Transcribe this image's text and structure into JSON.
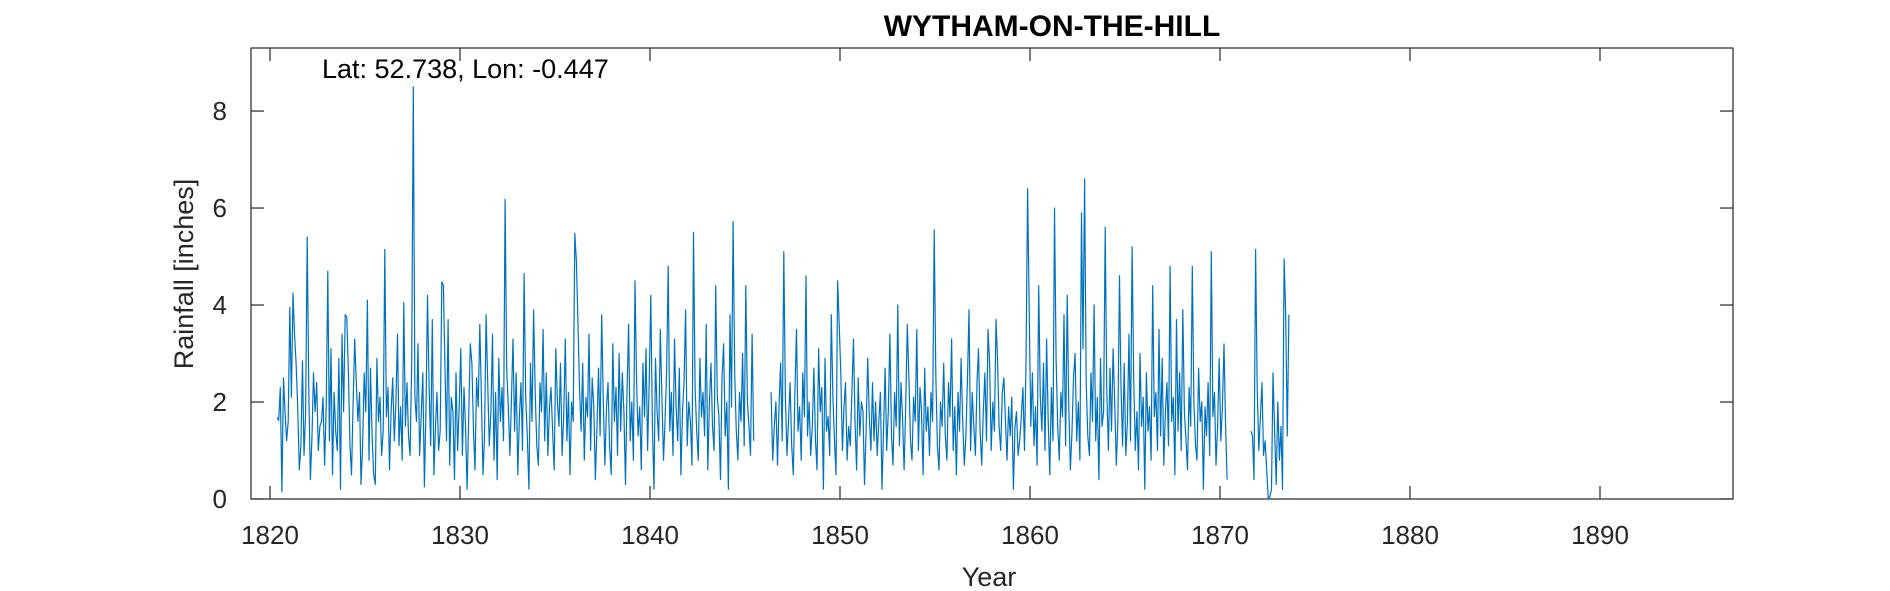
{
  "chart_data": {
    "type": "line",
    "title": "WYTHAM-ON-THE-HILL",
    "xlabel": "Year",
    "ylabel": "Rainfall [inches]",
    "annotation": "Lat: 52.738, Lon: -0.447",
    "xlim": [
      1819,
      1897
    ],
    "ylim": [
      0,
      9.3
    ],
    "x_ticks": [
      1820,
      1830,
      1840,
      1850,
      1860,
      1870,
      1880,
      1890
    ],
    "y_ticks": [
      0,
      2,
      4,
      6,
      8
    ],
    "grid": false,
    "line_color": "#0072BD",
    "series": [
      {
        "x_start": 1820.375,
        "x_step": 0.0833333,
        "values": [
          1.68,
          1.62,
          2.3,
          0.15,
          2.5,
          1.8,
          1.2,
          1.6,
          3.95,
          2.1,
          4.25,
          3.4,
          2.8,
          1.9,
          0.6,
          1.1,
          2.85,
          0.9,
          1.75,
          5.4,
          2.2,
          0.4,
          1.3,
          2.6,
          1.8,
          2.4,
          1.0,
          1.5,
          1.6,
          2.1,
          0.7,
          1.9,
          4.7,
          1.2,
          3.1,
          0.5,
          2.2,
          1.4,
          1.0,
          2.9,
          0.2,
          3.4,
          1.8,
          3.8,
          3.75,
          2.6,
          1.1,
          0.5,
          1.95,
          3.3,
          2.4,
          1.6,
          2.2,
          0.3,
          1.1,
          2.6,
          1.8,
          4.1,
          0.8,
          2.7,
          1.3,
          0.5,
          0.3,
          2.9,
          1.6,
          2.1,
          0.9,
          1.4,
          5.15,
          1.7,
          2.3,
          0.6,
          1.8,
          2.5,
          1.2,
          2.0,
          3.4,
          1.1,
          1.9,
          0.8,
          4.05,
          1.5,
          2.4,
          1.3,
          0.9,
          2.8,
          8.5,
          2.1,
          1.6,
          3.2,
          0.9,
          1.7,
          2.6,
          0.25,
          1.9,
          4.2,
          2.3,
          1.1,
          3.7,
          0.5,
          1.5,
          2.2,
          1.0,
          1.4,
          4.48,
          4.4,
          2.7,
          1.2,
          3.7,
          0.7,
          2.1,
          1.8,
          0.4,
          2.6,
          1.0,
          1.9,
          3.1,
          0.9,
          2.3,
          1.5,
          0.2,
          1.7,
          3.2,
          2.8,
          1.4,
          0.6,
          2.5,
          1.9,
          3.6,
          2.1,
          0.5,
          1.3,
          3.8,
          2.4,
          1.1,
          1.8,
          3.4,
          0.8,
          2.2,
          0.4,
          2.9,
          1.6,
          2.3,
          1.2,
          6.18,
          2.7,
          1.9,
          0.9,
          2.1,
          3.3,
          1.4,
          2.6,
          0.5,
          1.7,
          2.4,
          1.0,
          4.65,
          2.1,
          1.3,
          0.2,
          2.8,
          1.6,
          3.9,
          2.2,
          1.1,
          0.7,
          2.4,
          1.8,
          3.5,
          1.2,
          2.6,
          0.9,
          1.9,
          2.3,
          1.4,
          0.6,
          3.1,
          2.0,
          1.5,
          2.8,
          0.9,
          1.7,
          3.3,
          1.2,
          2.2,
          0.5,
          2.0,
          1.6,
          5.48,
          4.9,
          3.6,
          2.3,
          1.4,
          2.8,
          0.8,
          2.1,
          1.7,
          3.4,
          1.0,
          2.5,
          1.9,
          0.4,
          1.5,
          2.7,
          1.3,
          3.8,
          2.0,
          0.7,
          1.9,
          2.4,
          1.1,
          0.5,
          3.2,
          1.6,
          2.3,
          0.9,
          3.0,
          1.4,
          2.6,
          1.8,
          0.3,
          2.2,
          3.6,
          1.2,
          2.0,
          0.8,
          4.5,
          2.5,
          1.3,
          1.9,
          0.6,
          2.8,
          1.7,
          3.1,
          1.0,
          2.4,
          4.2,
          1.5,
          0.2,
          2.9,
          1.8,
          1.2,
          3.5,
          2.1,
          0.8,
          1.6,
          2.6,
          4.8,
          1.4,
          2.2,
          0.9,
          3.3,
          1.9,
          1.2,
          2.7,
          0.5,
          1.8,
          2.4,
          3.9,
          1.1,
          2.0,
          1.6,
          0.7,
          5.5,
          2.3,
          1.4,
          0.8,
          2.9,
          1.7,
          2.2,
          1.3,
          3.6,
          0.6,
          2.0,
          2.8,
          1.5,
          1.0,
          4.4,
          2.1,
          1.7,
          0.4,
          2.5,
          3.2,
          1.3,
          2.0,
          0.2,
          3.8,
          1.9,
          5.72,
          2.6,
          1.4,
          0.8,
          2.2,
          1.6,
          3.0,
          1.1,
          4.4,
          2.0,
          1.5,
          0.9,
          3.4,
          1.2,
          null,
          null,
          null,
          null,
          null,
          null,
          null,
          null,
          null,
          null,
          2.2,
          0.8,
          1.5,
          2.0,
          0.7,
          1.9,
          2.8,
          1.2,
          5.1,
          2.1,
          0.9,
          1.6,
          2.4,
          1.1,
          0.5,
          2.2,
          3.5,
          1.4,
          1.9,
          0.8,
          2.6,
          1.7,
          4.6,
          1.3,
          2.0,
          0.9,
          1.5,
          2.7,
          1.2,
          0.6,
          3.1,
          1.8,
          2.3,
          0.2,
          2.9,
          1.4,
          1.7,
          0.9,
          3.8,
          2.1,
          1.2,
          0.5,
          4.5,
          3.6,
          2.6,
          1.0,
          1.9,
          2.4,
          0.8,
          1.5,
          1.1,
          2.2,
          3.3,
          1.6,
          0.6,
          2.5,
          1.3,
          2.0,
          1.8,
          0.3,
          1.4,
          2.9,
          1.7,
          1.0,
          2.4,
          1.2,
          2.0,
          0.9,
          1.6,
          2.2,
          0.2,
          1.4,
          2.7,
          1.0,
          1.8,
          3.4,
          1.3,
          0.7,
          2.2,
          1.5,
          4.0,
          1.1,
          2.4,
          1.7,
          0.6,
          1.9,
          3.6,
          2.5,
          1.2,
          0.8,
          2.1,
          1.6,
          3.5,
          1.0,
          2.3,
          1.8,
          0.5,
          2.7,
          1.4,
          1.9,
          0.9,
          2.2,
          1.6,
          5.55,
          2.6,
          1.1,
          0.6,
          2.0,
          1.5,
          2.8,
          1.3,
          0.8,
          2.4,
          1.7,
          3.3,
          1.0,
          1.9,
          0.5,
          2.2,
          1.4,
          2.9,
          1.6,
          0.7,
          1.3,
          2.5,
          3.9,
          1.0,
          2.2,
          1.5,
          0.9,
          2.4,
          3.1,
          1.4,
          0.7,
          1.8,
          2.6,
          1.2,
          3.5,
          2.8,
          1.0,
          2.0,
          1.4,
          3.7,
          2.9,
          1.5,
          1.0,
          2.2,
          2.5,
          1.6,
          0.8,
          1.9,
          1.3,
          2.1,
          0.2,
          1.5,
          1.8,
          0.9,
          1.2,
          1.7,
          2.3,
          1.0,
          2.8,
          6.4,
          3.9,
          1.5,
          2.6,
          1.1,
          1.9,
          0.7,
          4.4,
          2.1,
          1.4,
          2.8,
          1.0,
          3.3,
          1.6,
          0.5,
          2.3,
          1.2,
          6.0,
          2.9,
          1.5,
          0.8,
          2.2,
          1.7,
          3.8,
          1.1,
          4.2,
          1.9,
          0.6,
          1.4,
          2.5,
          3.0,
          1.2,
          2.0,
          0.8,
          5.9,
          3.1,
          6.6,
          2.4,
          1.3,
          0.9,
          2.6,
          1.6,
          4.0,
          1.2,
          2.1,
          0.4,
          2.9,
          1.5,
          1.8,
          5.6,
          2.2,
          1.0,
          2.7,
          1.4,
          3.1,
          2.0,
          0.7,
          1.6,
          4.6,
          2.3,
          1.1,
          2.8,
          0.9,
          1.6,
          3.4,
          1.2,
          5.2,
          2.5,
          1.0,
          1.8,
          0.6,
          3.0,
          1.5,
          2.1,
          0.2,
          2.6,
          1.4,
          1.9,
          0.8,
          4.4,
          1.7,
          2.2,
          1.0,
          3.5,
          1.3,
          2.9,
          0.7,
          1.8,
          2.4,
          1.1,
          4.8,
          1.6,
          2.1,
          0.5,
          3.7,
          1.4,
          2.6,
          1.0,
          3.9,
          1.8,
          1.2,
          0.6,
          2.3,
          1.5,
          4.8,
          2.0,
          1.1,
          0.8,
          2.7,
          1.6,
          2.0,
          0.2,
          1.9,
          1.3,
          2.4,
          0.9,
          5.1,
          1.7,
          2.2,
          0.7,
          1.5,
          2.9,
          1.2,
          1.9,
          3.2,
          1.6,
          0.4,
          null,
          null,
          null,
          null,
          null,
          null,
          null,
          null,
          null,
          null,
          null,
          null,
          null,
          null,
          1.4,
          1.3,
          0.4,
          5.15,
          2.3,
          1.0,
          1.7,
          2.4,
          0.9,
          1.2,
          0.6,
          0.0,
          0.05,
          0.2,
          2.6,
          1.4,
          0.3,
          2.0,
          0.8,
          1.5,
          0.2,
          4.95,
          3.8,
          1.3,
          3.8
        ]
      }
    ]
  }
}
